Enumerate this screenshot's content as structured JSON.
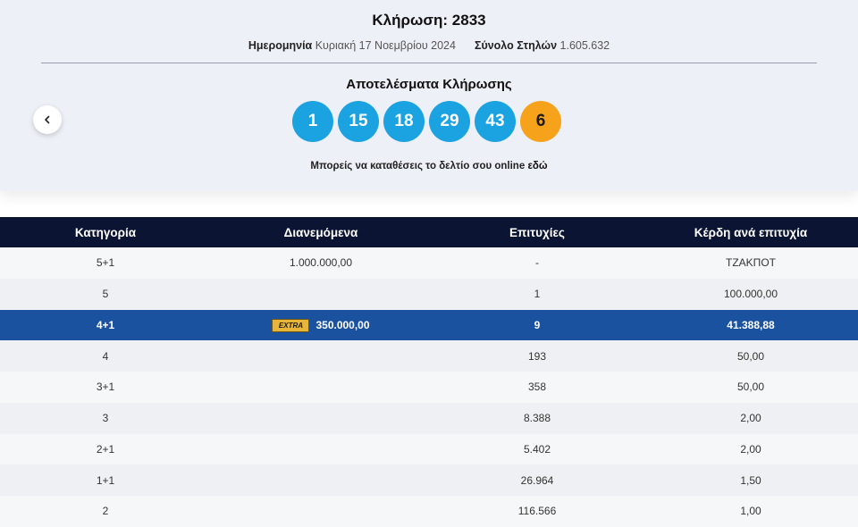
{
  "draw": {
    "title": "Κλήρωση: 2833",
    "date_label": "Ημερομηνία",
    "date_value": "Κυριακή 17 Νοεμβρίου 2024",
    "columns_label": "Σύνολο Στηλών",
    "columns_value": "1.605.632"
  },
  "results": {
    "title": "Αποτελέσματα Κλήρωσης",
    "numbers": [
      "1",
      "15",
      "18",
      "29",
      "43"
    ],
    "joker": "6",
    "online_text": "Μπορείς να καταθέσεις το δελτίο σου online",
    "online_link": "εδώ"
  },
  "icons": {
    "prev": "chevron-left-icon"
  },
  "colors": {
    "ball": "#1aa3e0",
    "joker": "#f7a21b",
    "header": "#0b1533",
    "highlight": "#1a52a0"
  },
  "table": {
    "headers": [
      "Κατηγορία",
      "Διανεμόμενα",
      "Επιτυχίες",
      "Κέρδη ανά επιτυχία"
    ],
    "rows": [
      {
        "category": "5+1",
        "distributed": "1.000.000,00",
        "winners": "-",
        "prize": "ΤΖΑΚΠΟΤ"
      },
      {
        "category": "5",
        "distributed": "",
        "winners": "1",
        "prize": "100.000,00"
      },
      {
        "category": "4+1",
        "extra": "EXTRA",
        "distributed": "350.000,00",
        "winners": "9",
        "prize": "41.388,88"
      },
      {
        "category": "4",
        "distributed": "",
        "winners": "193",
        "prize": "50,00"
      },
      {
        "category": "3+1",
        "distributed": "",
        "winners": "358",
        "prize": "50,00"
      },
      {
        "category": "3",
        "distributed": "",
        "winners": "8.388",
        "prize": "2,00"
      },
      {
        "category": "2+1",
        "distributed": "",
        "winners": "5.402",
        "prize": "2,00"
      },
      {
        "category": "1+1",
        "distributed": "",
        "winners": "26.964",
        "prize": "1,50"
      },
      {
        "category": "2",
        "distributed": "",
        "winners": "116.566",
        "prize": "1,00"
      }
    ]
  }
}
